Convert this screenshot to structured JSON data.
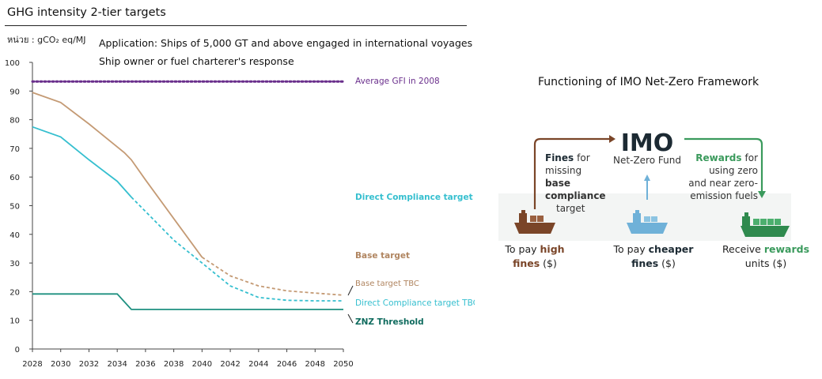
{
  "left_panel": {
    "title": "GHG intensity 2-tier targets",
    "unit": "หน่วย : gCO₂ eq/MJ",
    "note_line1": "Application: Ships of 5,000 GT and above engaged in international voyages",
    "note_line2": "Ship owner or fuel charterer's response"
  },
  "chart_data": {
    "type": "line",
    "title": "GHG intensity 2-tier targets",
    "ylabel": "หน่วย : gCO₂ eq/MJ",
    "xlim": [
      2028,
      2050
    ],
    "ylim": [
      0,
      100
    ],
    "x_ticks": [
      2028,
      2030,
      2032,
      2034,
      2036,
      2038,
      2040,
      2042,
      2044,
      2046,
      2048,
      2050
    ],
    "y_ticks": [
      0,
      10,
      20,
      30,
      40,
      50,
      60,
      70,
      80,
      90,
      100
    ],
    "grid": false,
    "series": [
      {
        "name": "Average GFI in 2008",
        "color": "#6a2f8c",
        "style": "dotted",
        "points": [
          [
            2028,
            93.3
          ],
          [
            2050,
            93.3
          ]
        ]
      },
      {
        "name": "Base target",
        "color": "#c49a74",
        "style": "solid",
        "points": [
          [
            2028,
            89.5
          ],
          [
            2030,
            86
          ],
          [
            2032,
            78.5
          ],
          [
            2034,
            70.5
          ],
          [
            2034.5,
            68.5
          ],
          [
            2035,
            66
          ],
          [
            2036,
            59
          ],
          [
            2038,
            45.5
          ],
          [
            2040,
            32
          ]
        ]
      },
      {
        "name": "Base target TBC",
        "color": "#c49a74",
        "style": "dashed",
        "points": [
          [
            2040,
            32
          ],
          [
            2042,
            25.5
          ],
          [
            2044,
            22
          ],
          [
            2046,
            20.3
          ],
          [
            2048,
            19.5
          ],
          [
            2050,
            18.8
          ]
        ]
      },
      {
        "name": "Direct Compliance target",
        "color": "#35bfcf",
        "style": "solid",
        "points": [
          [
            2028,
            77.5
          ],
          [
            2030,
            74
          ],
          [
            2032,
            66
          ],
          [
            2034,
            58.5
          ],
          [
            2035,
            53
          ]
        ]
      },
      {
        "name": "Direct Compliance target TBC",
        "color": "#35bfcf",
        "style": "dashed",
        "points": [
          [
            2035,
            53
          ],
          [
            2036,
            48
          ],
          [
            2038,
            38
          ],
          [
            2040,
            30
          ],
          [
            2042,
            22
          ],
          [
            2044,
            18
          ],
          [
            2046,
            17
          ],
          [
            2048,
            16.8
          ],
          [
            2050,
            16.8
          ]
        ]
      },
      {
        "name": "ZNZ Threshold",
        "color": "#1e9080",
        "style": "solid",
        "points": [
          [
            2028,
            19.2
          ],
          [
            2034,
            19.2
          ],
          [
            2035,
            13.8
          ],
          [
            2050,
            13.8
          ]
        ]
      }
    ],
    "labels": {
      "gfi": {
        "text": "Average GFI in 2008",
        "color": "#6a2f8c"
      },
      "dct": {
        "text": "Direct Compliance target",
        "color": "#35bfcf"
      },
      "base": {
        "text": "Base target",
        "color": "#b08560"
      },
      "base_tbc": {
        "text": "Base target TBC",
        "color": "#b08560"
      },
      "dct_tbc": {
        "text": "Direct Compliance target TBC",
        "color": "#35bfcf"
      },
      "znz": {
        "text": "ZNZ Threshold",
        "color": "#0f6b5e"
      }
    }
  },
  "framework": {
    "title": "Functioning of IMO Net-Zero Framework",
    "imo": "IMO",
    "fund": "Net-Zero Fund",
    "fines_word": "Fines",
    "fines_for": "for",
    "missing": "missing",
    "base": "base",
    "compliance": "compliance",
    "target": "target",
    "rewards_word": "Rewards",
    "rewards_for": "for",
    "using_zero": "using zero",
    "near_zero": "and near zero-",
    "emission_fuels": "emission fuels",
    "ship1_line1a": "To pay ",
    "ship1_line1b": "high",
    "ship1_line2a": "fines",
    "ship1_line2b": " ($)",
    "ship2_line1a": "To pay ",
    "ship2_line1b": "cheaper",
    "ship2_line2a": "fines",
    "ship2_line2b": " ($)",
    "ship3_line1a": "Receive ",
    "ship3_line1b": "rewards",
    "ship3_line2": "units ($)",
    "colors": {
      "brown": "#7a4528",
      "blue": "#6fb1d8",
      "green": "#3a9a5c",
      "dark": "#1c2a33"
    }
  }
}
